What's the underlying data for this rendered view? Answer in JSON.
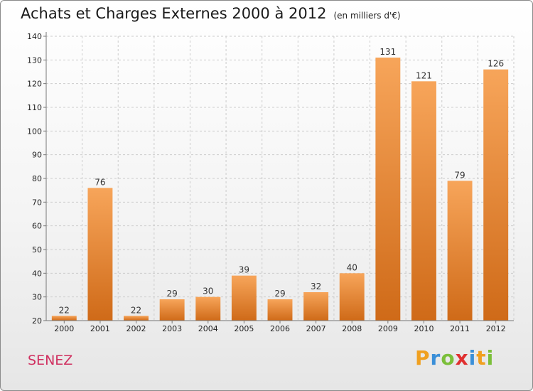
{
  "header": {
    "title": "Achats et Charges Externes 2000 à 2012",
    "unit": "(en milliers d'€)"
  },
  "commune": "SENEZ",
  "logo": {
    "letters": [
      "P",
      "r",
      "o",
      "x",
      "i",
      "t",
      "i"
    ],
    "colors": [
      "#f0a020",
      "#3a8fd8",
      "#7bbf3a",
      "#e03030",
      "#3a8fd8",
      "#f0a020",
      "#7bbf3a"
    ]
  },
  "colors": {
    "bar_top": "#f7a55a",
    "bar_bottom": "#cf6a18",
    "grid": "#cccccc",
    "axis": "#777777"
  },
  "chart_data": {
    "type": "bar",
    "title": "Achats et Charges Externes 2000 à 2012",
    "xlabel": "",
    "ylabel": "",
    "categories": [
      "2000",
      "2001",
      "2002",
      "2003",
      "2004",
      "2005",
      "2006",
      "2007",
      "2008",
      "2009",
      "2010",
      "2011",
      "2012"
    ],
    "values": [
      22,
      76,
      22,
      29,
      30,
      39,
      29,
      32,
      40,
      131,
      121,
      79,
      126
    ],
    "ylim": [
      20,
      140
    ],
    "yticks": [
      20,
      30,
      40,
      50,
      60,
      70,
      80,
      90,
      100,
      110,
      120,
      130,
      140
    ],
    "grid": true
  }
}
